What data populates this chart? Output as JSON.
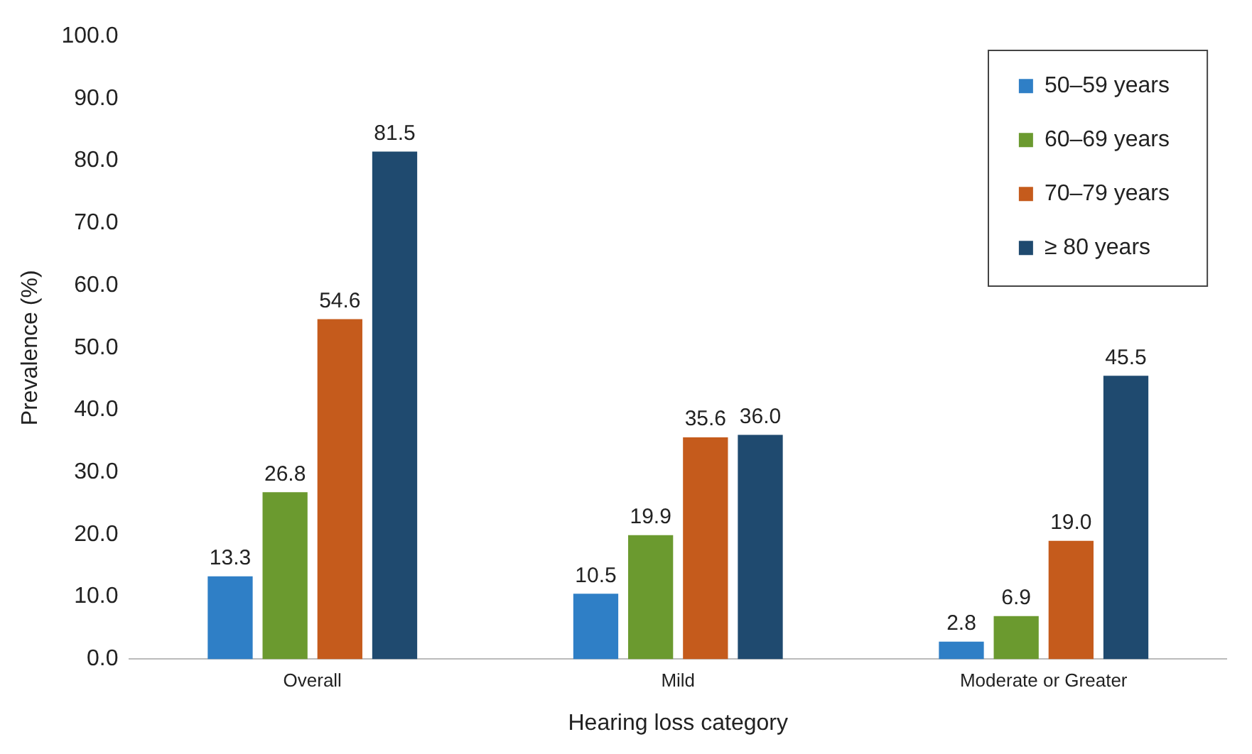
{
  "chart_data": {
    "type": "bar",
    "xlabel": "Hearing loss category",
    "ylabel": "Prevalence (%)",
    "categories": [
      "Overall",
      "Mild",
      "Moderate or Greater"
    ],
    "series": [
      {
        "name": "50–59 years",
        "color": "#2f7fc6",
        "values": [
          13.3,
          10.5,
          2.8
        ]
      },
      {
        "name": "60–69 years",
        "color": "#6b9a2f",
        "values": [
          26.8,
          19.9,
          6.9
        ]
      },
      {
        "name": "70–79 years",
        "color": "#c55b1c",
        "values": [
          54.6,
          35.6,
          19.0
        ]
      },
      {
        "name": "≥ 80 years",
        "color": "#1f4a6f",
        "values": [
          81.5,
          36.0,
          45.5
        ]
      }
    ],
    "ylim": [
      0,
      100
    ],
    "yticks": [
      {
        "value": 0,
        "label": "0.0"
      },
      {
        "value": 10,
        "label": "10.0"
      },
      {
        "value": 20,
        "label": "20.0"
      },
      {
        "value": 30,
        "label": "30.0"
      },
      {
        "value": 40,
        "label": "40.0"
      },
      {
        "value": 50,
        "label": "50.0"
      },
      {
        "value": 60,
        "label": "60.0"
      },
      {
        "value": 70,
        "label": "70.0"
      },
      {
        "value": 80,
        "label": "80.0"
      },
      {
        "value": 90,
        "label": "90.0"
      },
      {
        "value": 100,
        "label": "100.0"
      }
    ],
    "value_labels": [
      [
        "13.3",
        "10.5",
        "2.8"
      ],
      [
        "26.8",
        "19.9",
        "6.9"
      ],
      [
        "54.6",
        "35.6",
        "19.0"
      ],
      [
        "81.5",
        "36.0",
        "45.5"
      ]
    ],
    "legend": "top right",
    "grid": false
  }
}
